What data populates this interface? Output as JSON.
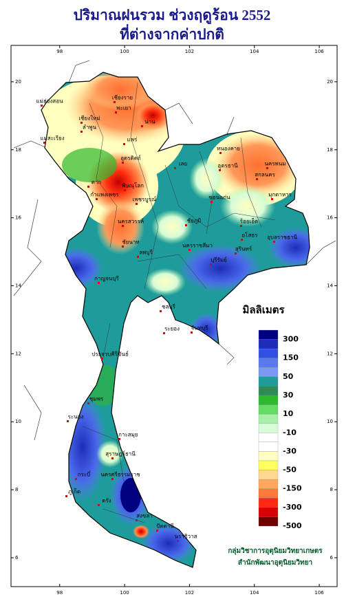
{
  "header": {
    "title": "ปริมาณฝนรวม ช่วงฤดูร้อน 2552",
    "subtitle": "ที่ต่างจากค่าปกติ"
  },
  "map": {
    "xlim": [
      96.5,
      106.55
    ],
    "ylim": [
      5.15,
      21.07
    ],
    "xticks": [
      98,
      100,
      102,
      104,
      106
    ],
    "yticks": [
      6,
      8,
      10,
      12,
      14,
      16,
      18,
      20
    ],
    "places": [
      "เชียงราย",
      "แม่ฮ่องสอน",
      "พะเยา",
      "น่าน",
      "เชียงใหม่",
      "ลำพูน",
      "แพร่",
      "แม่สะเรียง",
      "อุตรดิตถ์",
      "ตาก",
      "พิษณุโลก",
      "กำแพงเพชร",
      "เพชรบูรณ์",
      "หนองคาย",
      "อุดรธานี",
      "นครพนม",
      "สกลนคร",
      "มุกดาหาร",
      "ขอนแก่น",
      "เลย",
      "นครสวรรค์",
      "ชัยภูมิ",
      "ร้อยเอ็ด",
      "ยโสธร",
      "อุบลราชธานี",
      "ลพบุรี",
      "นครราชสีมา",
      "สุรินทร์",
      "บุรีรัมย์",
      "กาญจนบุรี",
      "ชัยนาท",
      "ชลบุรี",
      "ระยอง",
      "จันทบุรี",
      "ประจวบคีรีขันธ์",
      "ชุมพร",
      "ระนอง",
      "เกาะสมุย",
      "สุราษฎร์ธานี",
      "ภูเก็ต",
      "กระบี่",
      "นครศรีธรรมราช",
      "ตรัง",
      "สงขลา",
      "ปัตตานี",
      "นราธิวาส"
    ]
  },
  "legend": {
    "title": "มิลลิเมตร",
    "colors": [
      "#000080",
      "#1c2db8",
      "#3050e0",
      "#5a78f0",
      "#7c98f5",
      "#1e9c9c",
      "#2e8b57",
      "#2eb82e",
      "#64dc64",
      "#a8f0a8",
      "#d8fcd8",
      "#ffffff",
      "#ffffff",
      "#ffffc0",
      "#ffff60",
      "#ffd890",
      "#ffa860",
      "#ff7838",
      "#ff2810",
      "#d80000",
      "#6e0000"
    ],
    "labels": [
      "300",
      "150",
      "50",
      "30",
      "10",
      "-10",
      "-30",
      "-50",
      "-150",
      "-300",
      "-500"
    ]
  },
  "credit": {
    "line1": "กลุ่มวิชาการอุตุนิยมวิทยาเกษตร",
    "line2": "สำนักพัฒนาอุตุนิยมวิทยา"
  }
}
